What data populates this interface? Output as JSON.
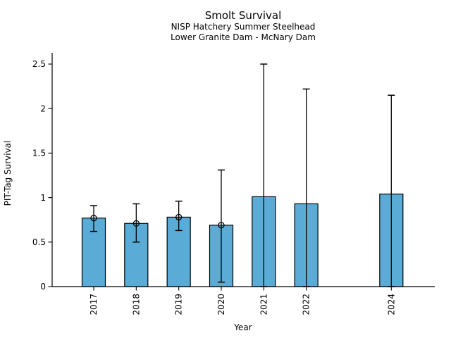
{
  "chart_data": {
    "type": "bar",
    "title": "Smolt Survival",
    "subtitle_line1": "NISP Hatchery Summer Steelhead",
    "subtitle_line2": "Lower Granite Dam - McNary Dam",
    "xlabel": "Year",
    "ylabel": "PIT-Tag Survival",
    "categories": [
      "2017",
      "2018",
      "2019",
      "2020",
      "2021",
      "2022",
      "2024"
    ],
    "x": [
      2017,
      2018,
      2019,
      2020,
      2021,
      2022,
      2024
    ],
    "values": [
      0.77,
      0.71,
      0.78,
      0.69,
      1.01,
      0.93,
      1.04
    ],
    "error_low": [
      0.62,
      0.5,
      0.63,
      0.05,
      0,
      0,
      0
    ],
    "error_high": [
      0.91,
      0.93,
      0.96,
      1.31,
      2.5,
      2.22,
      2.15
    ],
    "point_marker": [
      true,
      true,
      true,
      true,
      false,
      false,
      false
    ],
    "yticks": [
      0,
      0.5,
      1,
      1.5,
      2,
      2.5
    ],
    "ytick_labels": [
      "0",
      "0.5",
      "1",
      "1.5",
      "2",
      "2.5"
    ],
    "ylim": [
      0,
      2.63
    ],
    "xlim": [
      2016.02,
      2025.05
    ],
    "missing_years": [
      "2023"
    ],
    "bar_color": "#5AACD6",
    "bar_edge_color": "#000000",
    "error_color": "#000000",
    "grid": false,
    "legend": "none"
  }
}
